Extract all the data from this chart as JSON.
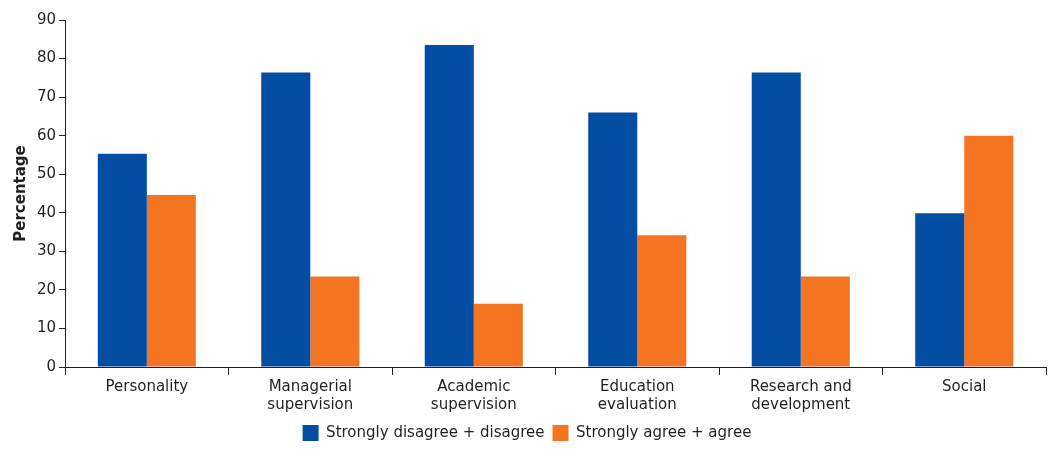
{
  "chart_data": {
    "type": "bar",
    "ylabel": "Percentage",
    "categories": [
      "Personality",
      "Managerial supervision",
      "Academic supervision",
      "Education evaluation",
      "Research and development",
      "Social"
    ],
    "series": [
      {
        "name": "Strongly disagree + disagree",
        "color": "#034ea2",
        "values": [
          55.3,
          76.4,
          83.5,
          66.0,
          76.4,
          39.9
        ]
      },
      {
        "name": "Strongly agree + agree",
        "color": "#f47521",
        "values": [
          44.6,
          23.5,
          16.4,
          34.2,
          23.5,
          60.0
        ]
      }
    ],
    "ylim": [
      0,
      90
    ],
    "yticks": [
      0,
      10,
      20,
      30,
      40,
      50,
      60,
      70,
      80,
      90
    ],
    "grid": false,
    "legend": "bottom"
  }
}
